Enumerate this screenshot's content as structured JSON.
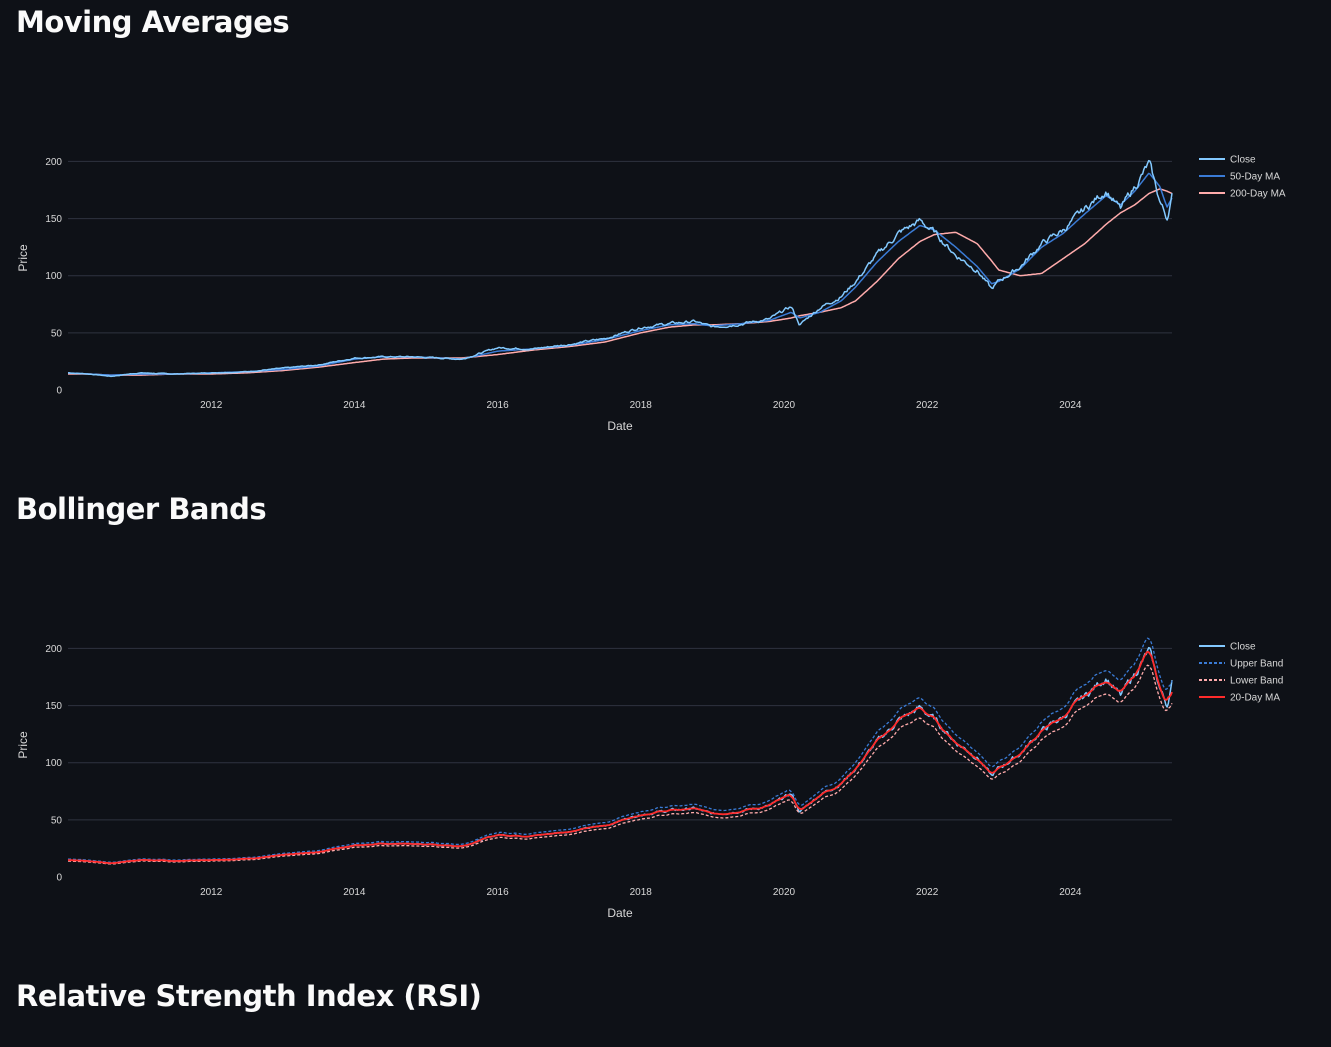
{
  "sections": {
    "ma_title": "Moving Averages",
    "bb_title": "Bollinger Bands",
    "rsi_title": "Relative Strength Index (RSI)"
  },
  "colors": {
    "background": "#0e1117",
    "grid": "#2f3340",
    "tick_text": "#d8d8d8",
    "close": "#83c9ff",
    "ma50": "#3a7bd5",
    "ma200": "#ffabab",
    "upper_band": "#3a7bd5",
    "lower_band": "#ffabab",
    "ma20": "#ff2b2b"
  },
  "chart_data": [
    {
      "type": "line",
      "title": "Moving Averages",
      "xlabel": "Date",
      "ylabel": "Price",
      "xlim": [
        2010.0,
        2025.42
      ],
      "ylim": [
        0,
        210
      ],
      "x_ticks": [
        2012,
        2014,
        2016,
        2018,
        2020,
        2022,
        2024
      ],
      "y_ticks": [
        0,
        50,
        100,
        150,
        200
      ],
      "legend_position": "right",
      "anchors": {
        "x": [
          2010.0,
          2010.3,
          2010.6,
          2011.0,
          2011.5,
          2012.0,
          2012.5,
          2013.0,
          2013.5,
          2014.0,
          2014.4,
          2014.8,
          2015.2,
          2015.5,
          2016.0,
          2016.5,
          2017.0,
          2017.5,
          2018.0,
          2018.4,
          2018.75,
          2019.0,
          2019.4,
          2019.8,
          2020.1,
          2020.22,
          2020.5,
          2020.8,
          2021.0,
          2021.3,
          2021.6,
          2021.9,
          2022.1,
          2022.4,
          2022.7,
          2022.9,
          2023.0,
          2023.3,
          2023.6,
          2023.9,
          2024.2,
          2024.5,
          2024.7,
          2024.9,
          2025.1,
          2025.25,
          2025.35,
          2025.42
        ],
        "close": [
          15,
          14,
          12,
          15,
          14,
          15,
          16,
          19,
          22,
          28,
          29,
          29,
          28,
          27,
          37,
          36,
          40,
          45,
          55,
          58,
          60,
          55,
          58,
          62,
          73,
          57,
          72,
          82,
          95,
          118,
          137,
          148,
          138,
          118,
          105,
          88,
          95,
          108,
          128,
          140,
          158,
          175,
          158,
          178,
          198,
          165,
          150,
          170
        ],
        "ma50": [
          15,
          14,
          13,
          14,
          14,
          15,
          16,
          18,
          21,
          27,
          29,
          29,
          28,
          27,
          34,
          36,
          39,
          44,
          52,
          57,
          58,
          56,
          58,
          61,
          68,
          63,
          68,
          78,
          90,
          112,
          130,
          144,
          140,
          125,
          108,
          93,
          95,
          106,
          125,
          137,
          154,
          170,
          162,
          174,
          190,
          178,
          160,
          168
        ],
        "ma200": [
          14,
          14,
          13,
          13,
          14,
          14,
          15,
          17,
          20,
          24,
          27,
          28,
          28,
          28,
          31,
          35,
          38,
          42,
          50,
          55,
          57,
          57,
          58,
          60,
          63,
          65,
          68,
          72,
          78,
          95,
          115,
          130,
          136,
          138,
          128,
          113,
          105,
          100,
          102,
          115,
          128,
          145,
          155,
          162,
          172,
          176,
          174,
          172
        ]
      },
      "series": [
        {
          "name": "Close"
        },
        {
          "name": "50-Day MA"
        },
        {
          "name": "200-Day MA"
        }
      ]
    },
    {
      "type": "line",
      "title": "Bollinger Bands",
      "xlabel": "Date",
      "ylabel": "Price",
      "xlim": [
        2010.0,
        2025.42
      ],
      "ylim": [
        0,
        210
      ],
      "x_ticks": [
        2012,
        2014,
        2016,
        2018,
        2020,
        2022,
        2024
      ],
      "y_ticks": [
        0,
        50,
        100,
        150,
        200
      ],
      "legend_position": "right",
      "band_offset_pct": 6,
      "series": [
        {
          "name": "Close"
        },
        {
          "name": "Upper Band"
        },
        {
          "name": "Lower Band"
        },
        {
          "name": "20-Day MA"
        }
      ]
    }
  ]
}
